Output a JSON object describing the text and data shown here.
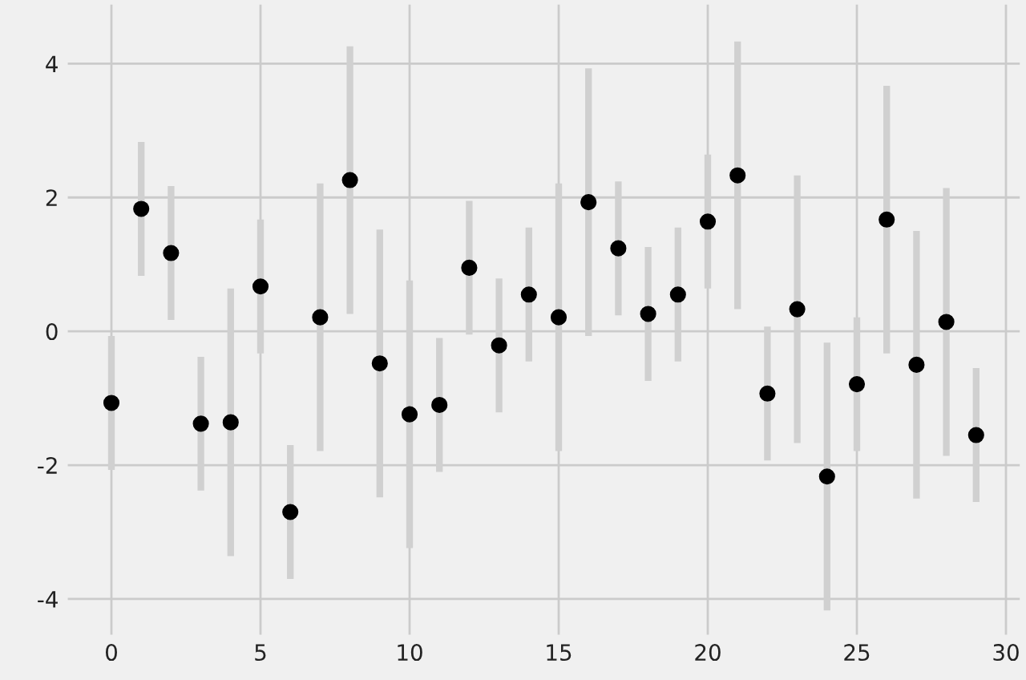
{
  "chart_data": {
    "type": "scatter",
    "x": [
      0,
      1,
      2,
      3,
      4,
      5,
      6,
      7,
      8,
      9,
      10,
      11,
      12,
      13,
      14,
      15,
      16,
      17,
      18,
      19,
      20,
      21,
      22,
      23,
      24,
      25,
      26,
      27,
      28,
      29
    ],
    "values": [
      -1.07,
      1.83,
      1.17,
      -1.38,
      -1.36,
      0.67,
      -2.7,
      0.21,
      2.26,
      -0.48,
      -1.24,
      -1.1,
      0.95,
      -0.21,
      0.55,
      0.21,
      1.93,
      1.24,
      0.26,
      0.55,
      1.64,
      2.33,
      -0.93,
      0.33,
      -2.17,
      -0.79,
      1.67,
      -0.5,
      0.14,
      -1.55
    ],
    "errors": [
      1,
      1,
      1,
      1,
      2,
      1,
      1,
      2,
      2,
      2,
      2,
      1,
      1,
      1,
      1,
      2,
      2,
      1,
      1,
      1,
      1,
      2,
      1,
      2,
      2,
      1,
      2,
      2,
      2,
      1
    ],
    "color": "#000000",
    "marker": "circle",
    "grid": true,
    "xlim": [
      -1.5,
      30.5
    ],
    "ylim": [
      -4.55,
      4.9
    ],
    "xticks": [
      0,
      5,
      10,
      15,
      20,
      25,
      30
    ],
    "yticks": [
      -4,
      -2,
      0,
      2,
      4
    ]
  }
}
